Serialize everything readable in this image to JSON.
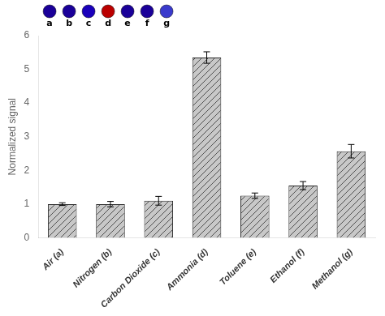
{
  "chart_data": {
    "type": "bar",
    "categories": [
      "Air (a)",
      "Nitrogen (b)",
      "Carbon Dioxide (c)",
      "Ammonia (d)",
      "Toluene (e)",
      "Ethanol (f)",
      "Methanol (g)"
    ],
    "values": [
      1.0,
      1.0,
      1.1,
      5.35,
      1.25,
      1.55,
      2.57
    ],
    "errors": [
      0.04,
      0.08,
      0.13,
      0.17,
      0.08,
      0.12,
      0.2
    ],
    "color": "#c8c8c8",
    "ylabel": "Normalized signal",
    "ylim": [
      0,
      6
    ],
    "yticks": [
      0,
      1,
      2,
      3,
      4,
      5,
      6
    ],
    "grid": false,
    "annotations": [
      {
        "text": "a",
        "color": "#1a0099"
      },
      {
        "text": "b",
        "color": "#1a0099"
      },
      {
        "text": "c",
        "color": "#1a00bb"
      },
      {
        "text": "d",
        "color": "#bb0000"
      },
      {
        "text": "e",
        "color": "#1a0099"
      },
      {
        "text": "f",
        "color": "#1a0099"
      },
      {
        "text": "g",
        "color": "#3a3acc"
      }
    ]
  }
}
